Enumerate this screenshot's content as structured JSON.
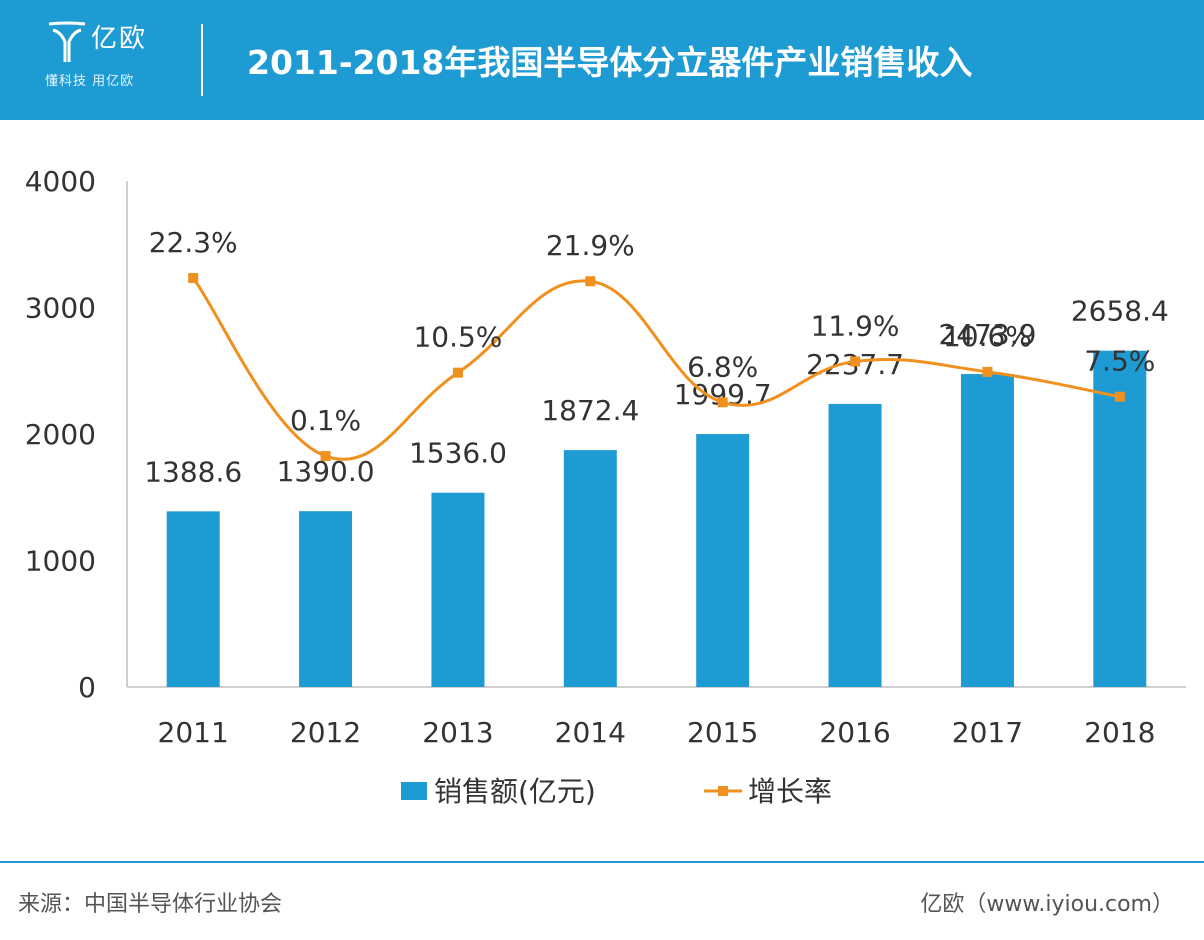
{
  "header": {
    "logo_name": "亿欧",
    "logo_tagline": "懂科技 用亿欧",
    "title": "2011-2018年我国半导体分立器件产业销售收入"
  },
  "colors": {
    "header_bg": "#1f9bd4",
    "bar": "#1f9bd4",
    "line": "#f0901e"
  },
  "chart_data": {
    "type": "bar",
    "categories": [
      "2011",
      "2012",
      "2013",
      "2014",
      "2015",
      "2016",
      "2017",
      "2018"
    ],
    "series": [
      {
        "name": "销售额(亿元)",
        "type": "bar",
        "values": [
          1388.6,
          1390.0,
          1536.0,
          1872.4,
          1999.7,
          2237.7,
          2473.9,
          2658.4
        ],
        "labels": [
          "1388.6",
          "1390.0",
          "1536.0",
          "1872.4",
          "1999.7",
          "2237.7",
          "2473.9",
          "2658.4"
        ]
      },
      {
        "name": "增长率",
        "type": "line",
        "smooth": true,
        "axis": "secondary",
        "values": [
          22.3,
          0.1,
          10.5,
          21.9,
          6.8,
          11.9,
          10.6,
          7.5
        ],
        "labels": [
          "22.3%",
          "0.1%",
          "10.5%",
          "21.9%",
          "6.8%",
          "11.9%",
          "10.6%",
          "7.5%"
        ]
      }
    ],
    "y_ticks": [
      "0",
      "1000",
      "2000",
      "3000",
      "4000"
    ],
    "ylim": [
      0,
      4000
    ],
    "secondary_ylim": [
      -28.7,
      34.4
    ],
    "grid": false,
    "legend_position": "bottom"
  },
  "footer": {
    "source": "来源：中国半导体行业协会",
    "credit": "亿欧（www.iyiou.com）"
  }
}
